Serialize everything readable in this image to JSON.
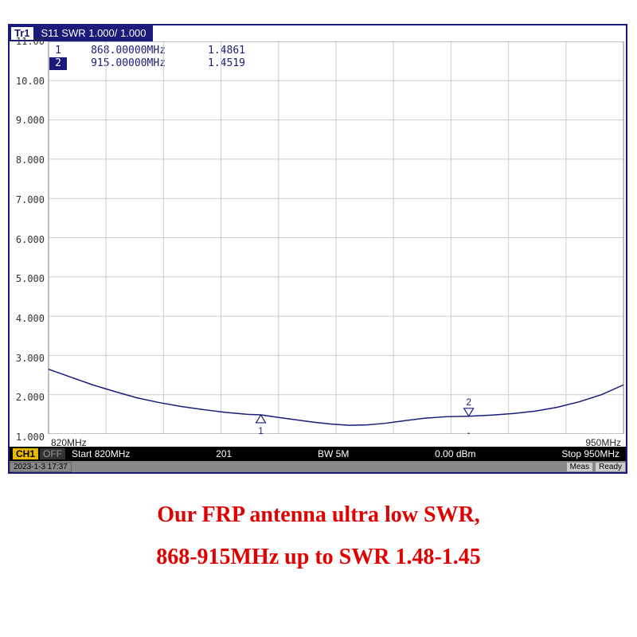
{
  "trace": {
    "badge": "Tr1",
    "label": "S11 SWR 1.000/ 1.000"
  },
  "markers": [
    {
      "n": "1",
      "freq": "868.00000MHz",
      "val": "1.4861",
      "active": false
    },
    {
      "n": "2",
      "freq": "915.00000MHz",
      "val": "1.4519",
      "active": true
    }
  ],
  "chart": {
    "type": "line",
    "xmin": 820,
    "xmax": 950,
    "ymin": 1.0,
    "ymax": 11.0,
    "ytick_step": 1.0,
    "yticks": [
      "11.00",
      "10.00",
      "9.000",
      "8.000",
      "7.000",
      "6.000",
      "5.000",
      "4.000",
      "3.000",
      "2.000",
      "1.000"
    ],
    "xlabel_left": "820MHz",
    "xlabel_right": "950MHz",
    "grid_color": "#cccccc",
    "line_color": "#1a1a7a",
    "background_color": "#ffffff",
    "line_width": 1.5,
    "data": [
      {
        "x": 820,
        "y": 2.65
      },
      {
        "x": 825,
        "y": 2.45
      },
      {
        "x": 830,
        "y": 2.25
      },
      {
        "x": 835,
        "y": 2.08
      },
      {
        "x": 840,
        "y": 1.92
      },
      {
        "x": 845,
        "y": 1.8
      },
      {
        "x": 850,
        "y": 1.7
      },
      {
        "x": 855,
        "y": 1.62
      },
      {
        "x": 860,
        "y": 1.55
      },
      {
        "x": 865,
        "y": 1.5
      },
      {
        "x": 868,
        "y": 1.4861
      },
      {
        "x": 872,
        "y": 1.42
      },
      {
        "x": 876,
        "y": 1.36
      },
      {
        "x": 880,
        "y": 1.3
      },
      {
        "x": 884,
        "y": 1.25
      },
      {
        "x": 888,
        "y": 1.22
      },
      {
        "x": 892,
        "y": 1.23
      },
      {
        "x": 896,
        "y": 1.27
      },
      {
        "x": 900,
        "y": 1.33
      },
      {
        "x": 905,
        "y": 1.4
      },
      {
        "x": 910,
        "y": 1.44
      },
      {
        "x": 915,
        "y": 1.4519
      },
      {
        "x": 920,
        "y": 1.48
      },
      {
        "x": 925,
        "y": 1.52
      },
      {
        "x": 930,
        "y": 1.58
      },
      {
        "x": 935,
        "y": 1.68
      },
      {
        "x": 940,
        "y": 1.82
      },
      {
        "x": 945,
        "y": 2.0
      },
      {
        "x": 950,
        "y": 2.25
      }
    ],
    "marker_points": [
      {
        "n": "1",
        "x": 868,
        "y": 1.4861,
        "pos": "below"
      },
      {
        "n": "2",
        "x": 915,
        "y": 1.4519,
        "pos": "above",
        "active": true
      }
    ],
    "active_marker_indicator_x": 915
  },
  "status": {
    "ch": "CH1",
    "off": "OFF",
    "start": "Start 820MHz",
    "points": "201",
    "bw": "BW 5M",
    "power": "0.00 dBm",
    "stop": "Stop 950MHz"
  },
  "timestamp": {
    "text": "2023-1-3 17:37",
    "meas": "Meas",
    "ready": "Ready"
  },
  "caption": {
    "line1": "Our FRP antenna ultra low SWR,",
    "line2": "868-915MHz up to SWR 1.48-1.45"
  },
  "colors": {
    "frame": "#1a1a7a",
    "caption": "#e00000"
  }
}
